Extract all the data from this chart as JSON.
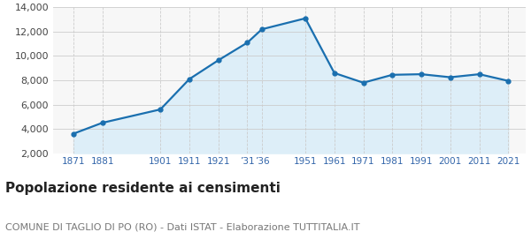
{
  "years": [
    1871,
    1881,
    1901,
    1911,
    1921,
    1931,
    1936,
    1951,
    1961,
    1971,
    1981,
    1991,
    2001,
    2011,
    2021
  ],
  "population": [
    3600,
    4500,
    5600,
    8100,
    9650,
    11100,
    12200,
    13100,
    8600,
    7800,
    8450,
    8500,
    8250,
    8500,
    7950
  ],
  "line_color": "#1a6faf",
  "fill_color": "#ddeef8",
  "marker_color": "#1a6faf",
  "background_color": "#f7f7f7",
  "grid_color_solid": "#cccccc",
  "grid_color_dash": "#cccccc",
  "ylim": [
    2000,
    14000
  ],
  "yticks": [
    2000,
    4000,
    6000,
    8000,
    10000,
    12000,
    14000
  ],
  "xlim_left": 1864,
  "xlim_right": 2027,
  "x_tick_positions": [
    1871,
    1881,
    1901,
    1911,
    1921,
    1931,
    1936,
    1951,
    1961,
    1971,
    1981,
    1991,
    2001,
    2011,
    2021
  ],
  "x_tick_labels": [
    "1871",
    "1881",
    "1901",
    "1911",
    "1921",
    "’31",
    "’36",
    "1951",
    "1961",
    "1971",
    "1981",
    "1991",
    "2001",
    "2011",
    "2021"
  ],
  "title": "Popolazione residente ai censimenti",
  "subtitle": "COMUNE DI TAGLIO DI PO (RO) - Dati ISTAT - Elaborazione TUTTITALIA.IT",
  "title_fontsize": 11,
  "subtitle_fontsize": 8,
  "tick_fontsize": 7.5,
  "ytick_fontsize": 8
}
